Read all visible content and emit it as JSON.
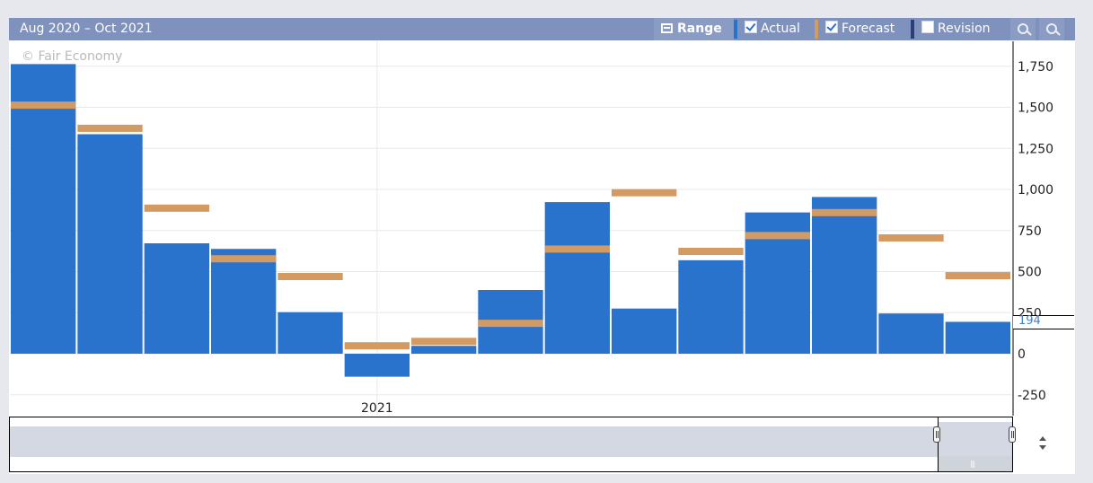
{
  "header": {
    "date_range": "Aug 2020 – Oct 2021",
    "range_label": "Range",
    "actual_label": "Actual",
    "forecast_label": "Forecast",
    "revision_label": "Revision",
    "actual_checked": true,
    "forecast_checked": true,
    "revision_checked": false
  },
  "watermark": "© Fair Economy",
  "current_value": "194",
  "colors": {
    "actual": "#2a73cc",
    "forecast": "#d39a62",
    "header_bg": "#7f92bd",
    "grid": "#e8e8e8"
  },
  "chart_data": {
    "type": "bar",
    "x_year_label": "2021",
    "ylim": [
      -250,
      1750
    ],
    "yticks": [
      -250,
      0,
      250,
      500,
      750,
      1000,
      1250,
      1500,
      1750
    ],
    "ytick_labels": [
      "-250",
      "0",
      "250",
      "500",
      "750",
      "1,000",
      "1,250",
      "1,500",
      "1,750"
    ],
    "series": [
      {
        "name": "Actual",
        "values": [
          1763,
          1336,
          672,
          638,
          253,
          -140,
          48,
          388,
          923,
          275,
          569,
          860,
          954,
          245,
          194
        ]
      },
      {
        "name": "Forecast",
        "values": [
          1513,
          1372,
          886,
          578,
          470,
          48,
          75,
          185,
          637,
          980,
          623,
          719,
          859,
          705,
          475
        ]
      }
    ]
  }
}
